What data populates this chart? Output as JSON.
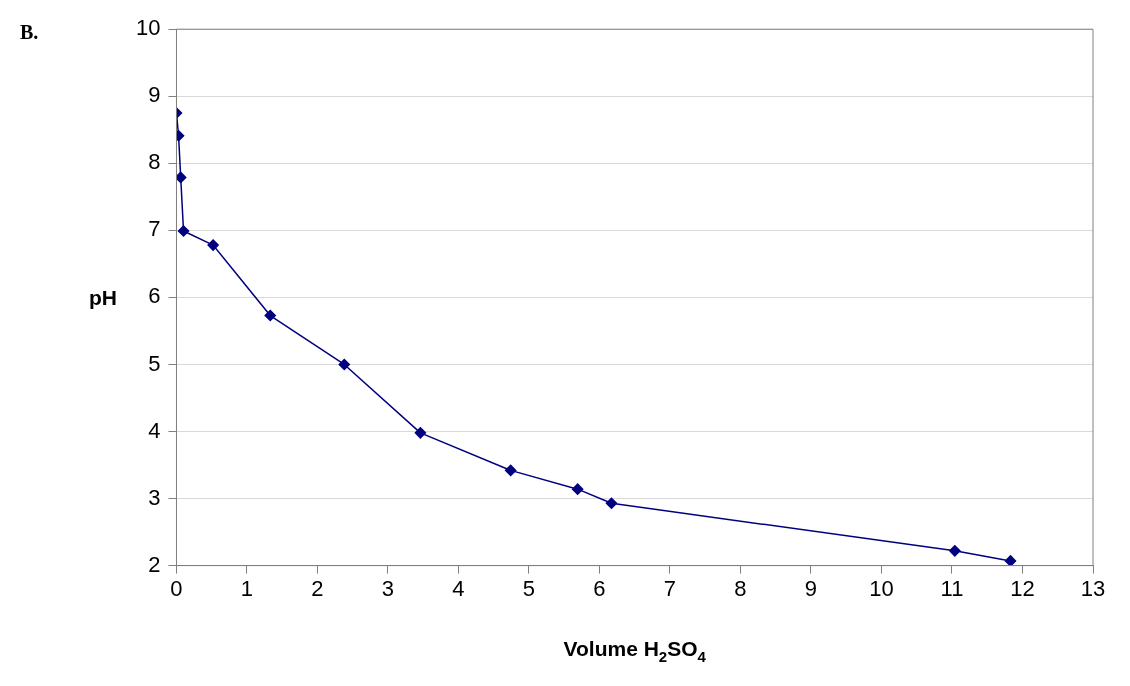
{
  "chart_data": {
    "type": "line",
    "xlabel": "Volume H$_{2}$SO$_{4}$",
    "ylabel": "pH",
    "annotations": [
      "B."
    ],
    "x": [
      0,
      0.03,
      0.06,
      0.1,
      0.52,
      1.33,
      2.38,
      3.46,
      4.74,
      5.69,
      6.17,
      11.04,
      11.83
    ],
    "series": [
      {
        "color": "#000080",
        "values": [
          8.75,
          8.41,
          7.79,
          6.99,
          6.78,
          5.73,
          5.0,
          3.98,
          3.42,
          3.14,
          2.93,
          2.22,
          2.07
        ]
      }
    ],
    "xlim": [
      0,
      13
    ],
    "xticks": [
      0,
      1,
      2,
      3,
      4,
      5,
      6,
      7,
      8,
      9,
      10,
      11,
      12,
      13
    ],
    "ylim": [
      2,
      10
    ],
    "yticks": [
      2,
      3,
      4,
      5,
      6,
      7,
      8,
      9,
      10
    ],
    "grid": "y",
    "legend": false,
    "marker": "diamond",
    "line_style": "solid"
  }
}
